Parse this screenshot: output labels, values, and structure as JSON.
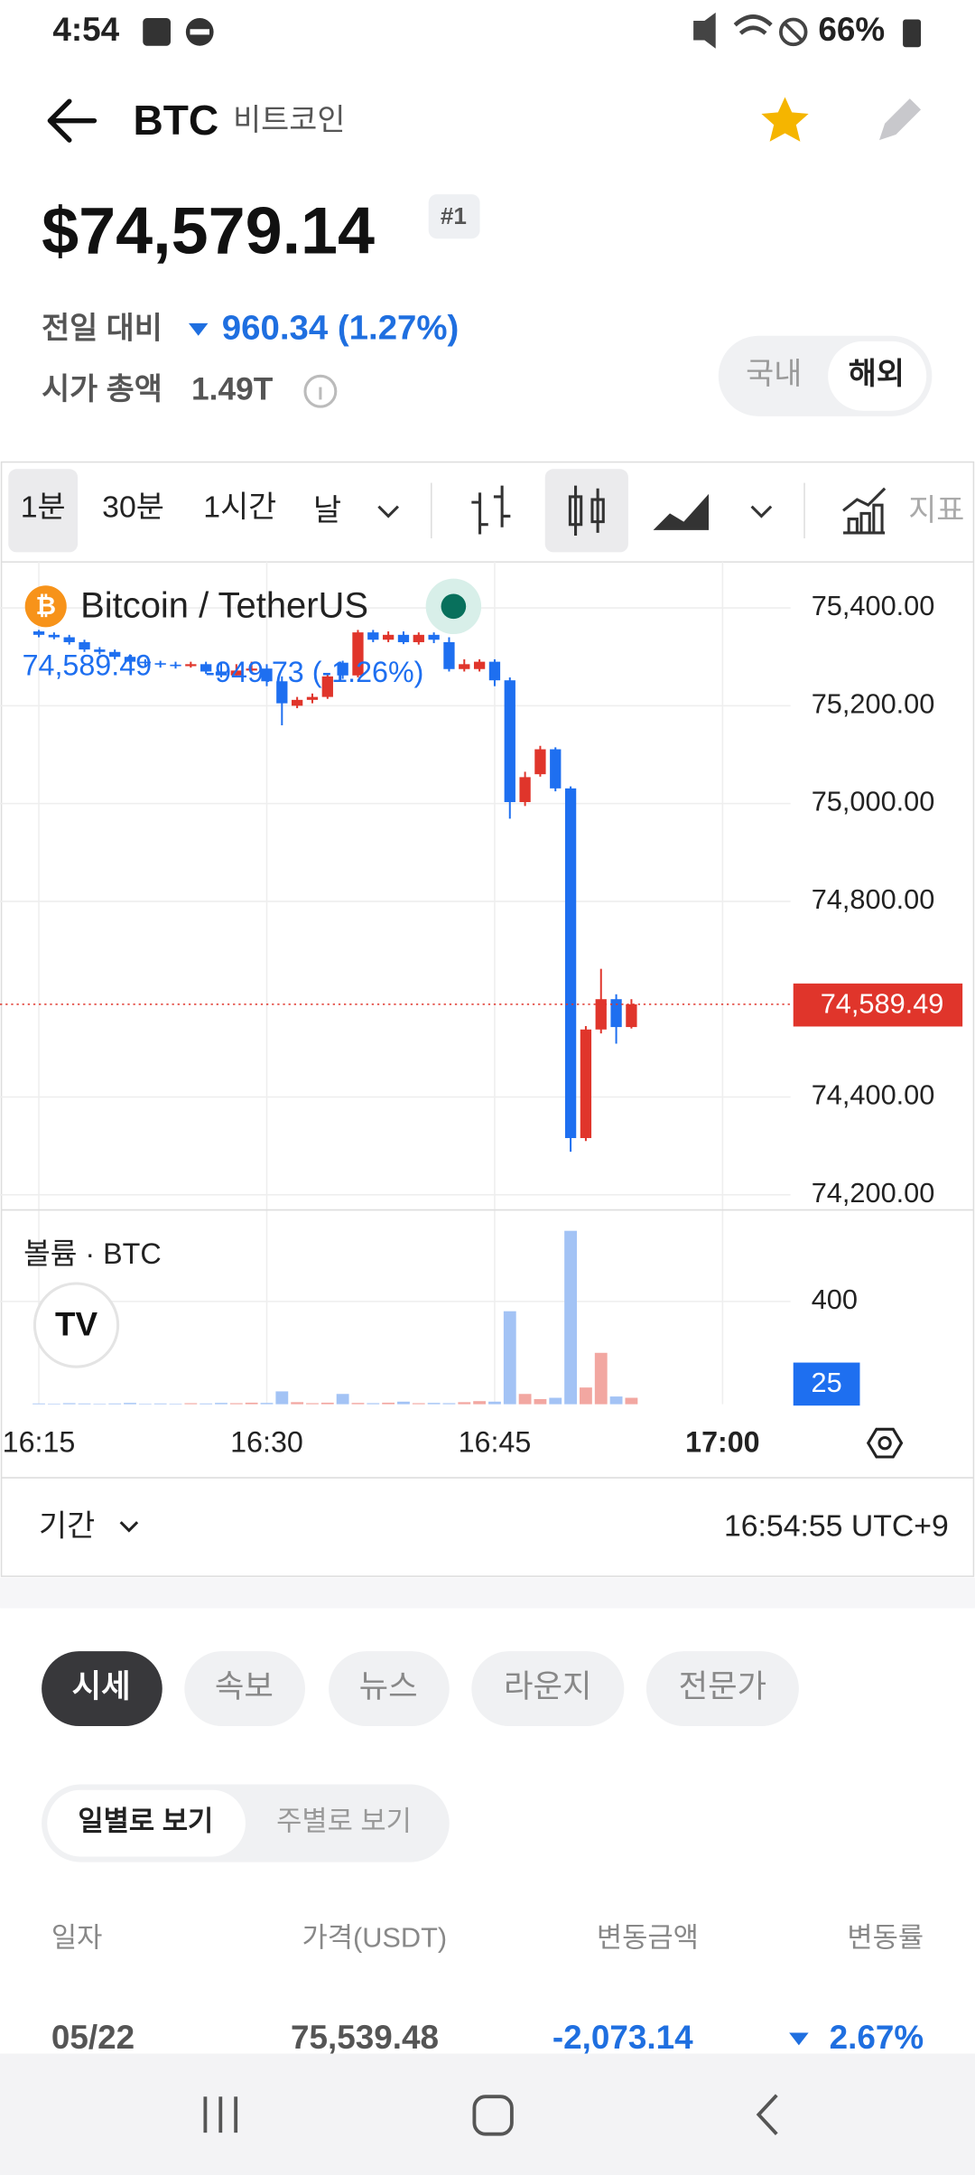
{
  "status_bar": {
    "time": "4:54",
    "battery": "66%"
  },
  "header": {
    "symbol": "BTC",
    "name": "비트코인"
  },
  "price": {
    "value": "$74,579.14",
    "rank": "#1"
  },
  "change": {
    "label": "전일 대비",
    "value": "960.34 (1.27%)"
  },
  "market_cap": {
    "label": "시가 총액",
    "value": "1.49T"
  },
  "market_toggle": [
    "국내",
    "해외"
  ],
  "intervals": [
    "1분",
    "30분",
    "1시간",
    "날"
  ],
  "indicator_label": "지표",
  "chart_data": {
    "type": "candlestick",
    "title": "Bitcoin / TetherUS",
    "last_label": "74,589.49",
    "change_label": "-949.73 (-1.26%)",
    "up_color": "#e0352b",
    "down_color": "#1e6ff0",
    "categories": [
      "16:15",
      null,
      null,
      null,
      null,
      null,
      null,
      null,
      null,
      null,
      null,
      null,
      null,
      null,
      null,
      "16:30",
      null,
      null,
      null,
      null,
      null,
      null,
      null,
      null,
      null,
      null,
      null,
      null,
      null,
      null,
      "16:45",
      null,
      null,
      null,
      null,
      null,
      null,
      null,
      null,
      null,
      null,
      null,
      null,
      null,
      null,
      "17:00"
    ],
    "open": [
      75352,
      75345,
      75340,
      75330,
      75315,
      75310,
      75300,
      75290,
      75287,
      75284,
      75281,
      75285,
      75270,
      75262,
      75272,
      75276,
      75250,
      75200,
      75212,
      75218,
      75288,
      75262,
      75350,
      75335,
      75345,
      75330,
      75345,
      75330,
      75275,
      75275,
      75290,
      75252,
      75003,
      75060,
      75111,
      75031,
      74316,
      74538,
      74600,
      74543,
      null,
      null,
      null,
      null,
      null,
      null
    ],
    "high": [
      75355,
      75350,
      75345,
      75335,
      75320,
      75315,
      75305,
      75295,
      75292,
      75290,
      75290,
      75290,
      75290,
      75285,
      75290,
      75285,
      75260,
      75218,
      75225,
      75265,
      75292,
      75355,
      75355,
      75352,
      75352,
      75350,
      75350,
      75340,
      75295,
      75295,
      75295,
      75258,
      75065,
      75118,
      75115,
      75035,
      74545,
      74662,
      74610,
      74600,
      null,
      null,
      null,
      null,
      null,
      null
    ],
    "low": [
      75340,
      75336,
      75325,
      75310,
      75305,
      75295,
      75285,
      75280,
      75278,
      75276,
      75278,
      75265,
      75258,
      75258,
      75268,
      75240,
      75160,
      75195,
      75205,
      75214,
      75255,
      75258,
      75330,
      75330,
      75326,
      75325,
      75328,
      75270,
      75270,
      75270,
      75240,
      74969,
      74995,
      75055,
      75025,
      74288,
      74310,
      74530,
      74509,
      74540,
      null,
      null,
      null,
      null,
      null,
      null
    ],
    "close": [
      75345,
      75340,
      75330,
      75315,
      75310,
      75300,
      75290,
      75287,
      75284,
      75281,
      75285,
      75270,
      75262,
      75272,
      75276,
      75250,
      75205,
      75212,
      75218,
      75260,
      75262,
      75350,
      75335,
      75345,
      75330,
      75345,
      75335,
      75275,
      75285,
      75290,
      75252,
      75003,
      75054,
      75111,
      75031,
      74316,
      74538,
      74600,
      74543,
      74589.49,
      null,
      null,
      null,
      null,
      null,
      null
    ],
    "ylim": [
      74169,
      75494
    ],
    "yticks": [
      {
        "value": 75400,
        "label": "75,400.00"
      },
      {
        "value": 75200,
        "label": "75,200.00"
      },
      {
        "value": 75000,
        "label": "75,000.00"
      },
      {
        "value": 74800,
        "label": "74,800.00"
      },
      {
        "value": 74400,
        "label": "74,400.00"
      },
      {
        "value": 74200,
        "label": "74,200.00"
      }
    ],
    "grid": true,
    "volume": {
      "title": "볼륨 · BTC",
      "up_color": "#f2a7a1",
      "down_color": "#a3c3f5",
      "values": [
        3,
        2,
        4,
        3,
        2,
        3,
        5,
        2,
        3,
        2,
        4,
        3,
        5,
        4,
        6,
        5,
        50,
        8,
        4,
        6,
        40,
        5,
        4,
        6,
        10,
        4,
        5,
        4,
        8,
        12,
        10,
        362,
        40,
        20,
        25,
        675,
        65,
        200,
        30,
        25,
        null,
        null,
        null,
        null,
        null,
        null
      ],
      "ylim": [
        0,
        740
      ],
      "yticks": [
        400
      ]
    }
  },
  "footer": {
    "period": "기간",
    "clock": "16:54:55 UTC+9"
  },
  "tabs": [
    "시세",
    "속보",
    "뉴스",
    "라운지",
    "전문가"
  ],
  "view_toggle": [
    "일별로 보기",
    "주별로 보기"
  ],
  "table": {
    "columns": [
      "일자",
      "가격(USDT)",
      "변동금액",
      "변동률"
    ],
    "rows": [
      [
        "05/22",
        "75,539.48",
        "-2,073.14",
        "2.67%"
      ]
    ]
  }
}
